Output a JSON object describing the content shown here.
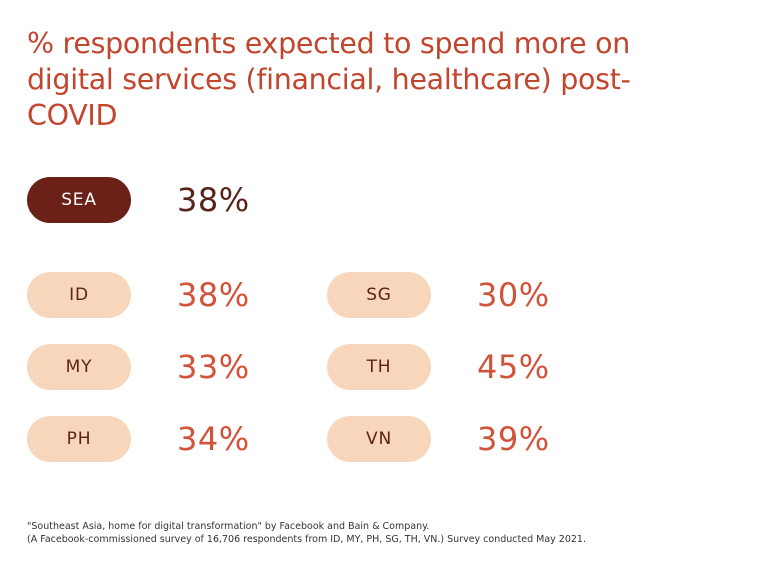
{
  "chart_data": {
    "type": "table",
    "title": "% respondents expected to spend more on digital services (financial, healthcare) post-COVID",
    "region": {
      "label": "SEA",
      "value": 38,
      "display": "38%"
    },
    "countries": [
      {
        "label": "ID",
        "value": 38,
        "display": "38%"
      },
      {
        "label": "MY",
        "value": 33,
        "display": "33%"
      },
      {
        "label": "PH",
        "value": 34,
        "display": "34%"
      },
      {
        "label": "SG",
        "value": 30,
        "display": "30%"
      },
      {
        "label": "TH",
        "value": 45,
        "display": "45%"
      },
      {
        "label": "VN",
        "value": 39,
        "display": "39%"
      }
    ],
    "unit": "%"
  },
  "footnote": {
    "line1": "\"Southeast Asia, home for digital transformation\" by Facebook and Bain & Company.",
    "line2": "(A Facebook-commissioned survey of 16,706 respondents from ID, MY, PH, SG, TH, VN.) Survey conducted May 2021."
  },
  "colors": {
    "title": "#C2452D",
    "region_pill": "#6B2118",
    "region_value": "#5A2318",
    "country_pill": "#F8D6BC",
    "country_pill_text": "#5A2318",
    "country_value": "#D0533A"
  }
}
